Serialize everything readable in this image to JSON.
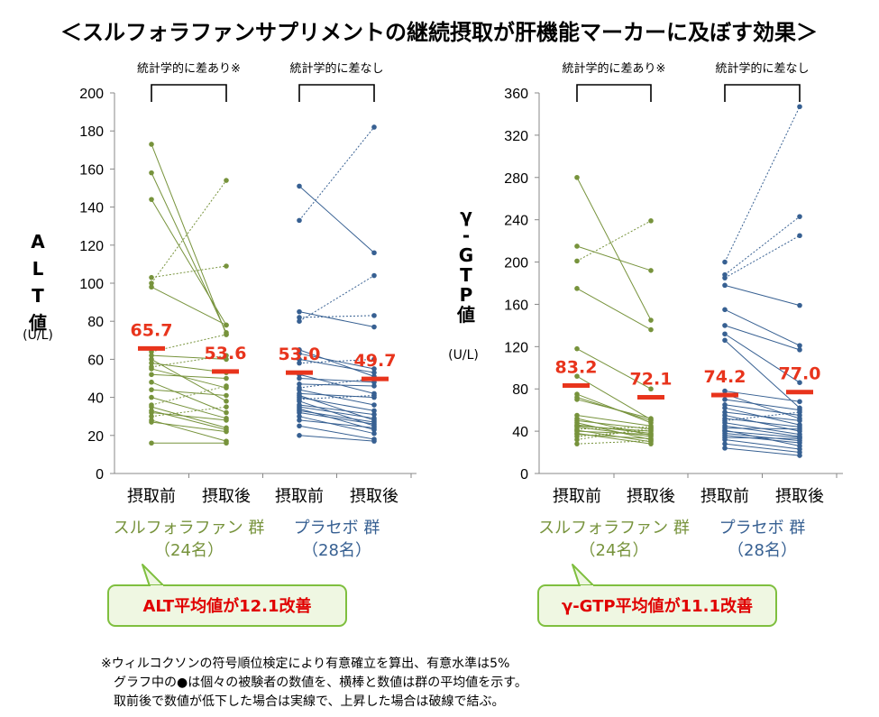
{
  "title": "＜スルフォラファンサプリメントの継続摂取が肝機能マーカーに及ぼす効果＞",
  "colors": {
    "sulfo": "#77933C",
    "placebo": "#376092",
    "mean": "#E8341C",
    "callout_border": "#7FBF3F",
    "callout_fill": "#EFF7E2",
    "callout_text": "#E00000"
  },
  "groups": [
    {
      "name": "スルフォラファン 群",
      "count": "（24名）"
    },
    {
      "name": "プラセボ 群",
      "count": "（28名）"
    }
  ],
  "chart_data": [
    {
      "type": "scatter",
      "ylabel": "ALT値",
      "yunit": "(U/L)",
      "ylim": [
        0,
        200
      ],
      "yticks": [
        0,
        20,
        40,
        60,
        80,
        100,
        120,
        140,
        160,
        180,
        200
      ],
      "categories": [
        "摂取前",
        "摂取後",
        "摂取前",
        "摂取後"
      ],
      "brackets": [
        "統計学的に差あり※",
        "統計学的に差なし"
      ],
      "series": [
        {
          "name": "スルフォラファン 群",
          "color": "#77933C",
          "pairs": [
            [
              173,
              73
            ],
            [
              158,
              74
            ],
            [
              144,
              78
            ],
            [
              103,
              109
            ],
            [
              100,
              154
            ],
            [
              98,
              78
            ],
            [
              64,
              73
            ],
            [
              62,
              60
            ],
            [
              60,
              38
            ],
            [
              58,
              53
            ],
            [
              56,
              62
            ],
            [
              55,
              45
            ],
            [
              52,
              50
            ],
            [
              48,
              32
            ],
            [
              44,
              41
            ],
            [
              40,
              29
            ],
            [
              36,
              46
            ],
            [
              35,
              24
            ],
            [
              33,
              23
            ],
            [
              32,
              28
            ],
            [
              30,
              35
            ],
            [
              28,
              17
            ],
            [
              27,
              22
            ],
            [
              16,
              16
            ]
          ],
          "means": [
            "65.7",
            "53.6"
          ],
          "mean_values": [
            65.7,
            53.6
          ]
        },
        {
          "name": "プラセボ 群",
          "color": "#376092",
          "pairs": [
            [
              151,
              116
            ],
            [
              133,
              182
            ],
            [
              85,
              77
            ],
            [
              82,
              83
            ],
            [
              80,
              104
            ],
            [
              65,
              51
            ],
            [
              63,
              55
            ],
            [
              60,
              53
            ],
            [
              58,
              60
            ],
            [
              52,
              42
            ],
            [
              50,
              48
            ],
            [
              47,
              46
            ],
            [
              45,
              50
            ],
            [
              44,
              36
            ],
            [
              42,
              40
            ],
            [
              41,
              28
            ],
            [
              40,
              33
            ],
            [
              39,
              41
            ],
            [
              38,
              25
            ],
            [
              36,
              31
            ],
            [
              35,
              29
            ],
            [
              34,
              23
            ],
            [
              33,
              27
            ],
            [
              32,
              26
            ],
            [
              30,
              21
            ],
            [
              28,
              24
            ],
            [
              25,
              18
            ],
            [
              20,
              17
            ]
          ],
          "means": [
            "53.0",
            "49.7"
          ],
          "mean_values": [
            53.0,
            49.7
          ]
        }
      ],
      "callout": "ALT平均値が12.1改善"
    },
    {
      "type": "scatter",
      "ylabel": "γ-GTP値",
      "yunit": "(U/L)",
      "ylim": [
        0,
        360
      ],
      "yticks": [
        0,
        40,
        80,
        120,
        160,
        200,
        240,
        280,
        320,
        360
      ],
      "categories": [
        "摂取前",
        "摂取後",
        "摂取前",
        "摂取後"
      ],
      "brackets": [
        "統計学的に差あり※",
        "統計学的に差なし"
      ],
      "series": [
        {
          "name": "スルフォラファン 群",
          "color": "#77933C",
          "pairs": [
            [
              280,
              145
            ],
            [
              215,
              192
            ],
            [
              201,
              239
            ],
            [
              175,
              136
            ],
            [
              118,
              80
            ],
            [
              92,
              51
            ],
            [
              75,
              48
            ],
            [
              72,
              50
            ],
            [
              70,
              52
            ],
            [
              55,
              45
            ],
            [
              52,
              36
            ],
            [
              50,
              42
            ],
            [
              48,
              32
            ],
            [
              46,
              38
            ],
            [
              45,
              40
            ],
            [
              44,
              35
            ],
            [
              42,
              44
            ],
            [
              41,
              30
            ],
            [
              40,
              37
            ],
            [
              38,
              28
            ],
            [
              37,
              33
            ],
            [
              35,
              41
            ],
            [
              32,
              43
            ],
            [
              28,
              31
            ]
          ],
          "means": [
            "83.2",
            "72.1"
          ],
          "mean_values": [
            83.2,
            72.1
          ]
        },
        {
          "name": "プラセボ 群",
          "color": "#376092",
          "pairs": [
            [
              200,
              347
            ],
            [
              188,
              243
            ],
            [
              185,
              225
            ],
            [
              178,
              159
            ],
            [
              155,
              121
            ],
            [
              140,
              117
            ],
            [
              132,
              86
            ],
            [
              126,
              62
            ],
            [
              78,
              68
            ],
            [
              75,
              52
            ],
            [
              70,
              60
            ],
            [
              65,
              55
            ],
            [
              62,
              46
            ],
            [
              58,
              50
            ],
            [
              55,
              40
            ],
            [
              52,
              44
            ],
            [
              50,
              58
            ],
            [
              48,
              37
            ],
            [
              45,
              35
            ],
            [
              43,
              42
            ],
            [
              41,
              26
            ],
            [
              40,
              34
            ],
            [
              38,
              31
            ],
            [
              36,
              29
            ],
            [
              34,
              33
            ],
            [
              32,
              23
            ],
            [
              28,
              20
            ],
            [
              24,
              17
            ]
          ],
          "means": [
            "74.2",
            "77.0"
          ],
          "mean_values": [
            74.2,
            77.0
          ]
        }
      ],
      "callout": "γ-GTP平均値が11.1改善"
    }
  ],
  "notes": [
    "※ウィルコクソンの符号順位検定により有意確立を算出、有意水準は5%",
    "　グラフ中の●は個々の被験者の数値を、横棒と数値は群の平均値を示す。",
    "　取前後で数値が低下した場合は実線で、上昇した場合は破線で結ぶ。"
  ]
}
